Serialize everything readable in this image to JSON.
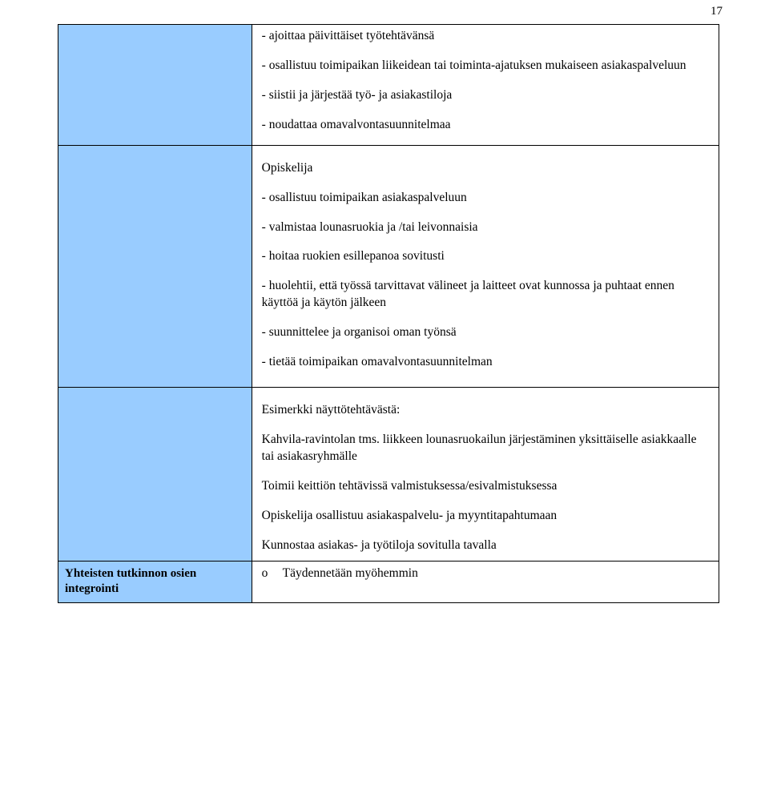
{
  "pageNumber": "17",
  "colors": {
    "leftCellBg": "#99ccff",
    "rightCellBg": "#ffffff",
    "border": "#000000",
    "text": "#000000"
  },
  "row1": {
    "lines": [
      "- ajoittaa päivittäiset työtehtävänsä",
      "- osallistuu toimipaikan liikeidean tai toiminta-ajatuksen mukaiseen asiakaspalveluun",
      "- siistii ja järjestää työ- ja asiakastiloja",
      "- noudattaa omavalvontasuunnitelmaa"
    ]
  },
  "row2": {
    "heading": "Opiskelija",
    "lines": [
      "- osallistuu toimipaikan asiakaspalveluun",
      "- valmistaa lounasruokia ja /tai leivonnaisia",
      "- hoitaa ruokien esillepanoa sovitusti",
      "- huolehtii, että työssä tarvittavat välineet ja laitteet ovat kunnossa ja puhtaat ennen käyttöä ja käytön jälkeen",
      "- suunnittelee ja organisoi oman työnsä",
      "- tietää toimipaikan omavalvontasuunnitelman"
    ]
  },
  "row3": {
    "heading": "Esimerkki näyttötehtävästä:",
    "lines": [
      "Kahvila-ravintolan tms. liikkeen lounasruokailun järjestäminen yksittäiselle asiakkaalle tai asiakasryhmälle",
      "Toimii keittiön tehtävissä valmistuksessa/esivalmistuksessa",
      "Opiskelija osallistuu asiakaspalvelu- ja myyntitapahtumaan",
      "Kunnostaa asiakas- ja työtiloja sovitulla tavalla"
    ]
  },
  "row4": {
    "leftLabel": "Yhteisten tutkinnon osien integrointi",
    "bulletSymbol": "o",
    "bulletText": "Täydennetään myöhemmin"
  }
}
